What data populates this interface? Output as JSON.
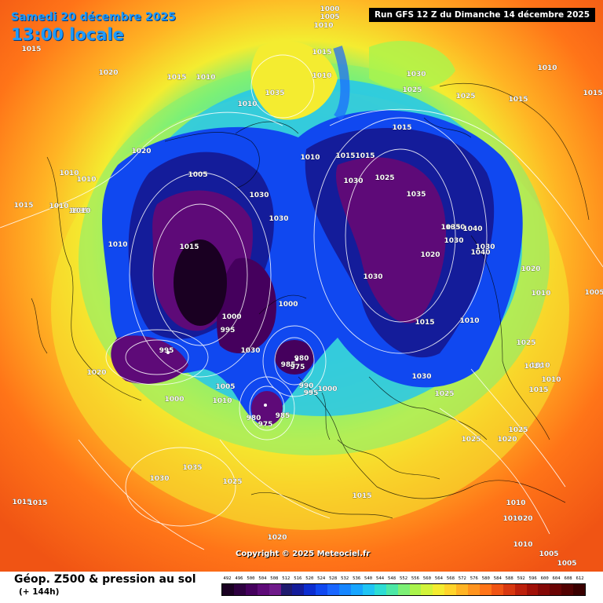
{
  "header": {
    "date": "Samedi 20 décembre 2025",
    "time": "13:00 locale",
    "run": "Run GFS 12 Z du Dimanche 14 décembre 2025"
  },
  "footer": {
    "title": "Géop. Z500 & pression au sol",
    "subtitle": "(+ 144h)",
    "copyright": "Copyright © 2025 Meteociel.fr"
  },
  "scale": {
    "values": [
      "492",
      "496",
      "500",
      "504",
      "508",
      "512",
      "516",
      "520",
      "524",
      "528",
      "532",
      "536",
      "540",
      "544",
      "548",
      "552",
      "556",
      "560",
      "564",
      "568",
      "572",
      "576",
      "580",
      "584",
      "588",
      "592",
      "596",
      "600",
      "604",
      "608",
      "612"
    ],
    "colors": [
      "#1a0022",
      "#2e0040",
      "#45005d",
      "#5e0a78",
      "#6f1a8a",
      "#1f1a6e",
      "#141c9a",
      "#0c2dd0",
      "#1048f0",
      "#1a66ff",
      "#1585ff",
      "#16a5ff",
      "#1fc4f4",
      "#2cddd4",
      "#4ce8a6",
      "#7cf076",
      "#aaf44c",
      "#d2f43a",
      "#f4ec30",
      "#ffd42a",
      "#ffb424",
      "#ff941e",
      "#ff7418",
      "#f05414",
      "#d83810",
      "#bc200c",
      "#a01008",
      "#840806",
      "#6a0404",
      "#520202",
      "#3a0000"
    ]
  },
  "isobar_labels": [
    "1000",
    "1005",
    "1010",
    "1015",
    "1015",
    "1010",
    "1010",
    "1020",
    "1015",
    "1010",
    "1030",
    "1035",
    "1025",
    "1030",
    "1010",
    "1025",
    "1015",
    "1005",
    "1015",
    "1020",
    "1010",
    "1010",
    "1010",
    "1005",
    "1010",
    "1030",
    "1010",
    "1015",
    "1015",
    "1015",
    "1025",
    "1015",
    "1030",
    "1035",
    "1030",
    "1030",
    "1035",
    "1040",
    "1040",
    "1030",
    "1030",
    "1020",
    "1000",
    "995",
    "1015",
    "1000",
    "1010",
    "1015",
    "1020",
    "995",
    "1030",
    "1010",
    "985",
    "975",
    "980",
    "990",
    "995",
    "1000",
    "1005",
    "1010",
    "1000",
    "1020",
    "1030",
    "1025",
    "980",
    "975",
    "985",
    "1015",
    "1015",
    "1025",
    "1010",
    "1035",
    "1030",
    "1025",
    "1025",
    "1020",
    "1020",
    "1015",
    "1025",
    "1020",
    "1010",
    "1010",
    "1010",
    "1005",
    "1015",
    "1020",
    "1005",
    "1010",
    "1010",
    "1005"
  ],
  "legend_colors": {
    "isobar": "#ffffff",
    "coastline": "#000000",
    "date_text": "#1e9bff",
    "banner_bg": "#000000"
  }
}
